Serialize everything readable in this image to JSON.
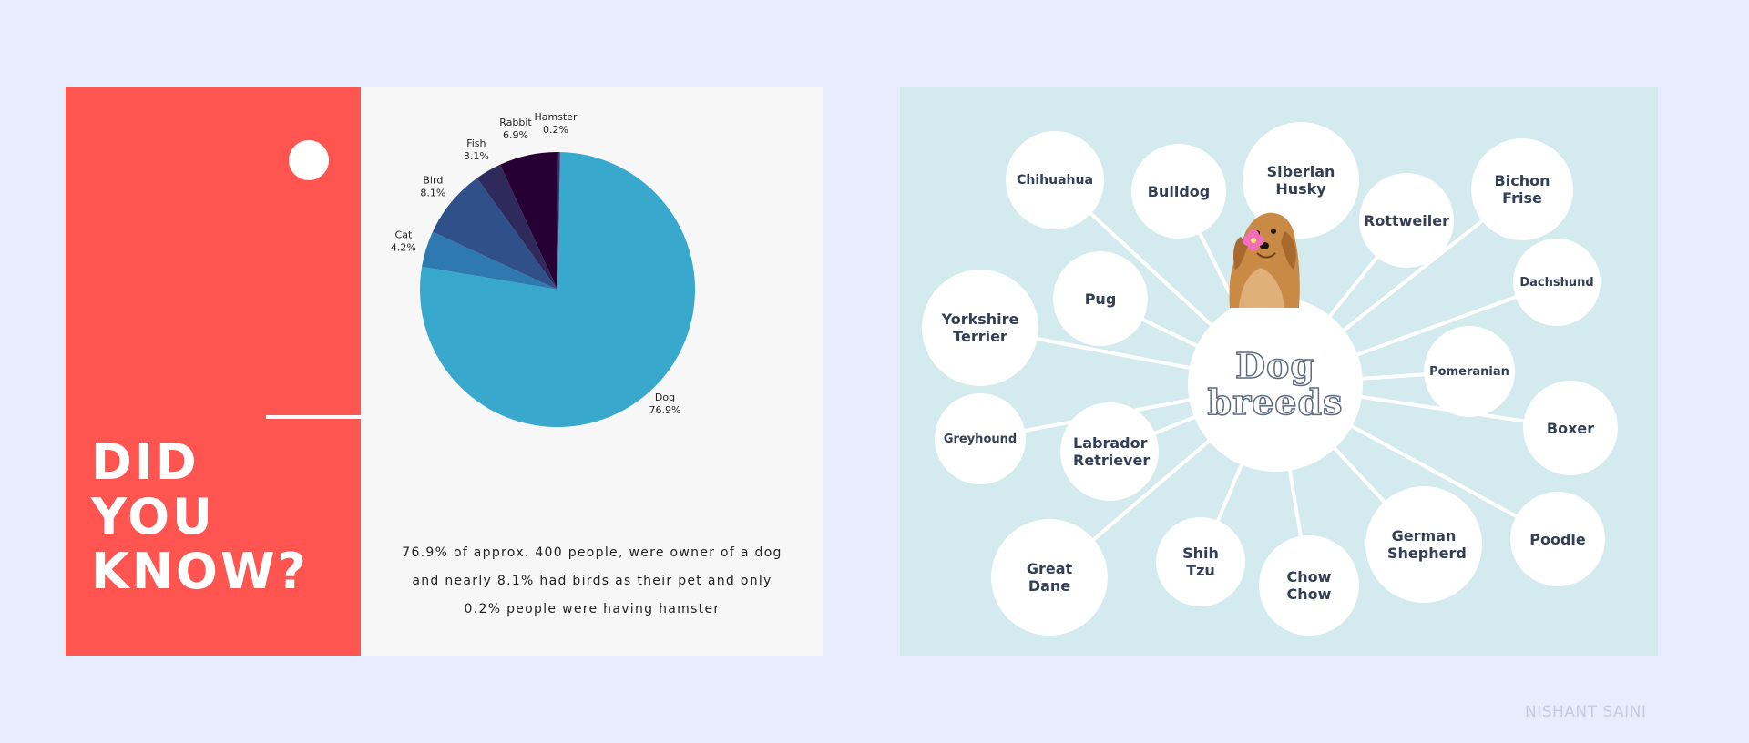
{
  "left_panel": {
    "heading_lines": [
      "DID",
      "YOU",
      "KNOW?"
    ],
    "caption_lines": [
      "76.9% of approx. 400 people, were owner of a dog",
      "and nearly 8.1% had birds as their pet and only",
      "0.2% people were having hamster"
    ]
  },
  "chart_data": {
    "type": "pie",
    "title": "",
    "slices": [
      {
        "label": "Dog",
        "value": 76.9,
        "value_label": "76.9%",
        "color": "#38a8cd"
      },
      {
        "label": "Cat",
        "value": 4.2,
        "value_label": "4.2%",
        "color": "#2e7ab0"
      },
      {
        "label": "Bird",
        "value": 8.1,
        "value_label": "8.1%",
        "color": "#30508a"
      },
      {
        "label": "Fish",
        "value": 3.1,
        "value_label": "3.1%",
        "color": "#2e2a5c"
      },
      {
        "label": "Rabbit",
        "value": 6.9,
        "value_label": "6.9%",
        "color": "#260035"
      },
      {
        "label": "Hamster",
        "value": 0.2,
        "value_label": "0.2%",
        "color": "#3a2f78"
      }
    ],
    "legend": "none"
  },
  "right_panel": {
    "center_lines": [
      "Dog",
      "breeds"
    ],
    "breeds": [
      "Chihuahua",
      "Bulldog",
      "Siberian Husky",
      "Rottweiler",
      "Bichon Frise",
      "Dachshund",
      "Pug",
      "Yorkshire Terrier",
      "Pomeranian",
      "Greyhound",
      "Labrador Retriever",
      "Boxer",
      "German Shepherd",
      "Poodle",
      "Great Dane",
      "Shih Tzu",
      "Chow Chow"
    ]
  },
  "signature": "NISHANT SAINI",
  "colors": {
    "background": "#e9ecfd",
    "red_block": "#ff5550",
    "right_bg": "#d3eaee",
    "breed_text": "#333f55"
  }
}
